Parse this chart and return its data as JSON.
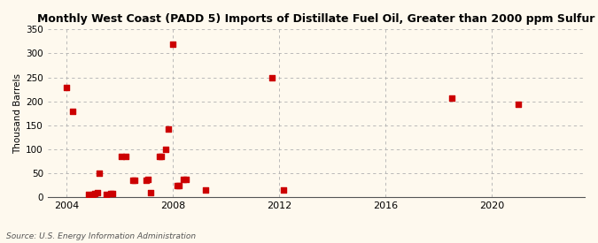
{
  "title": "Monthly West Coast (PADD 5) Imports of Distillate Fuel Oil, Greater than 2000 ppm Sulfur",
  "ylabel": "Thousand Barrels",
  "source_text": "Source: U.S. Energy Information Administration",
  "background_color": "#fef9ee",
  "marker_color": "#cc0000",
  "ylim": [
    0,
    350
  ],
  "yticks": [
    0,
    50,
    100,
    150,
    200,
    250,
    300,
    350
  ],
  "xtick_years": [
    2004,
    2008,
    2012,
    2016,
    2020
  ],
  "xlim": [
    2003.3,
    2023.5
  ],
  "data_points": [
    [
      2004.0,
      228
    ],
    [
      2004.25,
      179
    ],
    [
      2004.83,
      5
    ],
    [
      2005.0,
      5
    ],
    [
      2005.08,
      8
    ],
    [
      2005.17,
      10
    ],
    [
      2005.25,
      50
    ],
    [
      2005.5,
      5
    ],
    [
      2005.67,
      7
    ],
    [
      2005.75,
      7
    ],
    [
      2006.08,
      85
    ],
    [
      2006.25,
      85
    ],
    [
      2006.5,
      35
    ],
    [
      2006.58,
      36
    ],
    [
      2007.0,
      35
    ],
    [
      2007.08,
      38
    ],
    [
      2007.17,
      10
    ],
    [
      2007.5,
      85
    ],
    [
      2007.58,
      85
    ],
    [
      2007.75,
      100
    ],
    [
      2007.83,
      143
    ],
    [
      2008.0,
      320
    ],
    [
      2008.17,
      25
    ],
    [
      2008.25,
      25
    ],
    [
      2008.42,
      37
    ],
    [
      2008.5,
      38
    ],
    [
      2009.25,
      15
    ],
    [
      2011.75,
      250
    ],
    [
      2012.17,
      15
    ],
    [
      2018.5,
      207
    ],
    [
      2021.0,
      193
    ]
  ]
}
